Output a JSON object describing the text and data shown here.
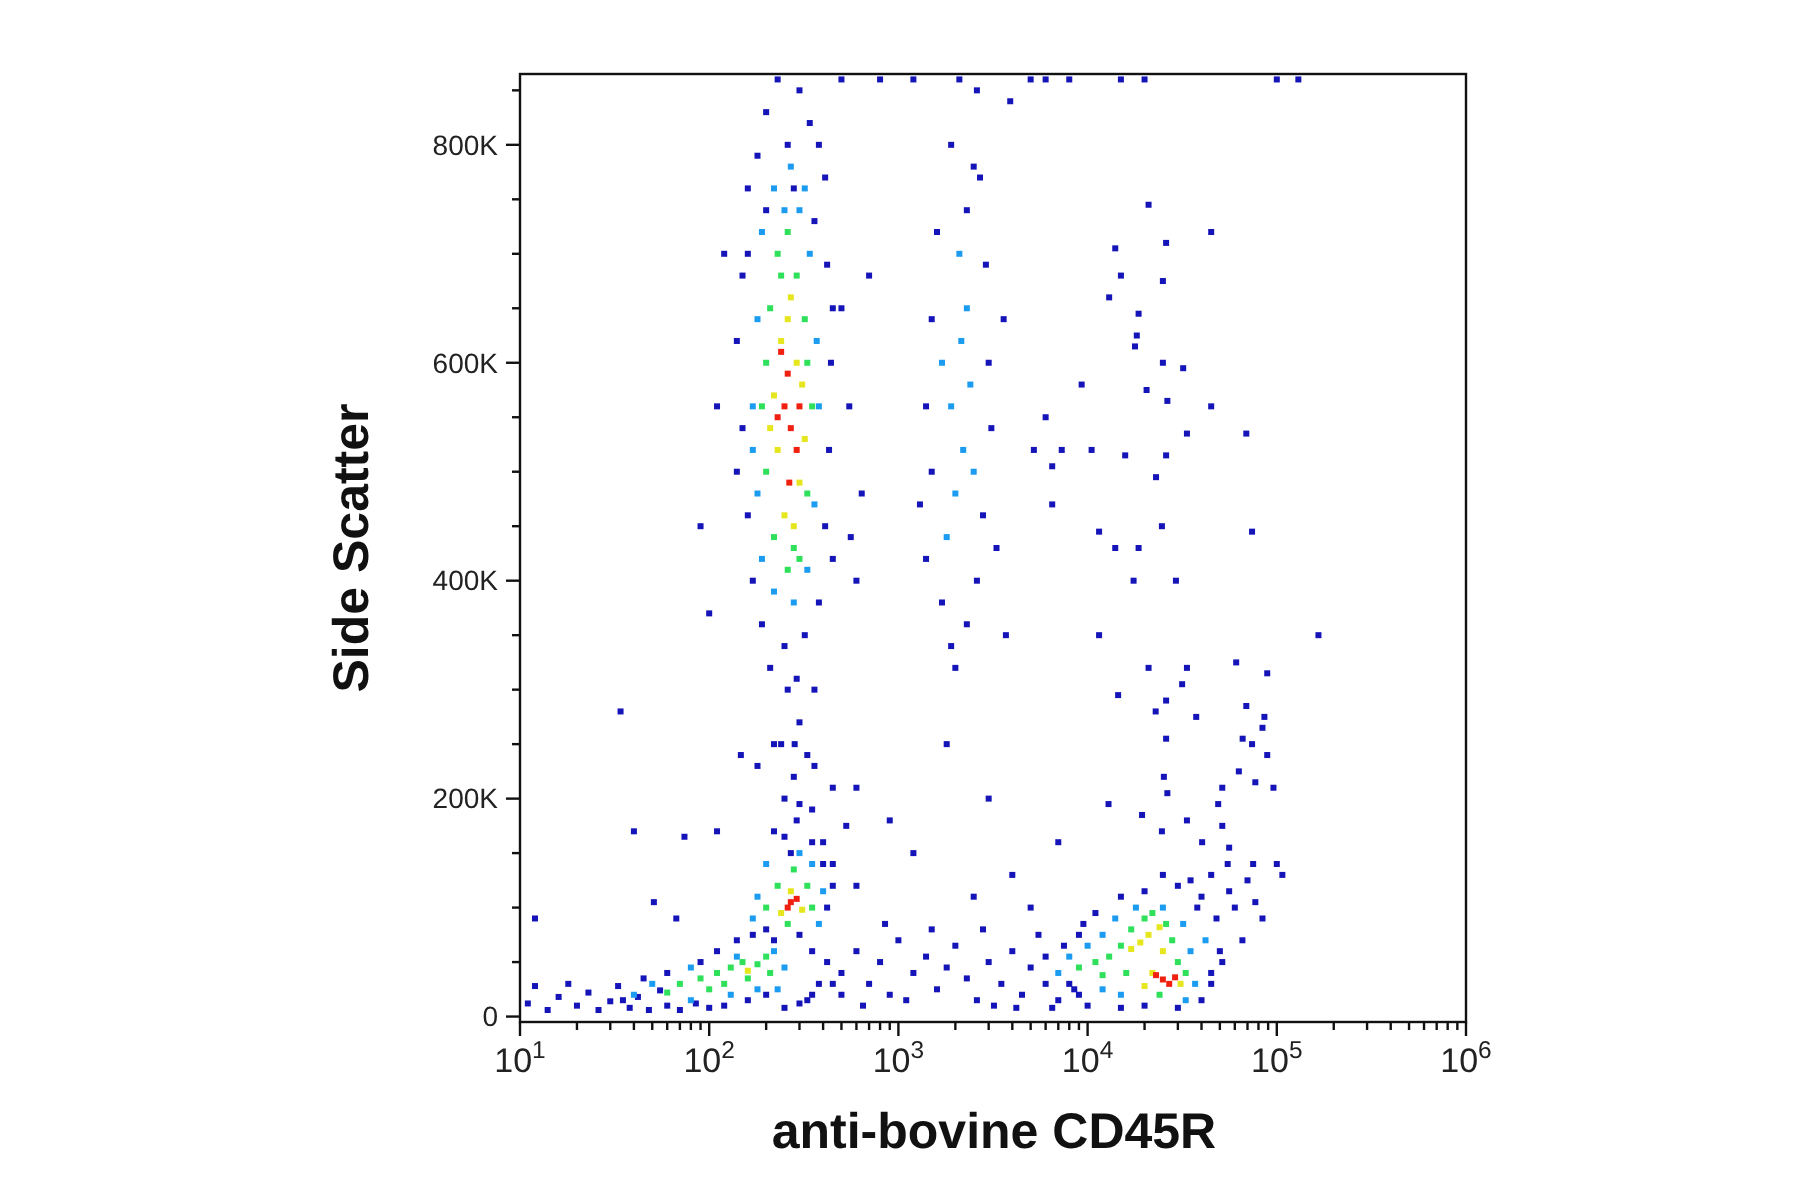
{
  "chart_data": {
    "type": "scatter",
    "xlabel": "anti-bovine CD45R",
    "ylabel": "Side Scatter",
    "log": "x",
    "marker": "square",
    "xlim": [
      10,
      1000000
    ],
    "ylim": [
      -5000,
      865000
    ],
    "xticks": [
      {
        "value": 10,
        "label": "10$^{1}$"
      },
      {
        "value": 20,
        "label": null
      },
      {
        "value": 30,
        "label": null
      },
      {
        "value": 40,
        "label": null
      },
      {
        "value": 50,
        "label": null
      },
      {
        "value": 60,
        "label": null
      },
      {
        "value": 70,
        "label": null
      },
      {
        "value": 80,
        "label": null
      },
      {
        "value": 90,
        "label": null
      },
      {
        "value": 100,
        "label": "10$^{2}$"
      },
      {
        "value": 200,
        "label": null
      },
      {
        "value": 300,
        "label": null
      },
      {
        "value": 400,
        "label": null
      },
      {
        "value": 500,
        "label": null
      },
      {
        "value": 600,
        "label": null
      },
      {
        "value": 700,
        "label": null
      },
      {
        "value": 800,
        "label": null
      },
      {
        "value": 900,
        "label": null
      },
      {
        "value": 1000,
        "label": "10$^{3}$"
      },
      {
        "value": 2000,
        "label": null
      },
      {
        "value": 3000,
        "label": null
      },
      {
        "value": 4000,
        "label": null
      },
      {
        "value": 5000,
        "label": null
      },
      {
        "value": 6000,
        "label": null
      },
      {
        "value": 7000,
        "label": null
      },
      {
        "value": 8000,
        "label": null
      },
      {
        "value": 9000,
        "label": null
      },
      {
        "value": 10000,
        "label": "10$^{4}$"
      },
      {
        "value": 20000,
        "label": null
      },
      {
        "value": 30000,
        "label": null
      },
      {
        "value": 40000,
        "label": null
      },
      {
        "value": 50000,
        "label": null
      },
      {
        "value": 60000,
        "label": null
      },
      {
        "value": 70000,
        "label": null
      },
      {
        "value": 80000,
        "label": null
      },
      {
        "value": 90000,
        "label": null
      },
      {
        "value": 100000,
        "label": "10$^{5}$"
      },
      {
        "value": 200000,
        "label": null
      },
      {
        "value": 300000,
        "label": null
      },
      {
        "value": 400000,
        "label": null
      },
      {
        "value": 500000,
        "label": null
      },
      {
        "value": 600000,
        "label": null
      },
      {
        "value": 700000,
        "label": null
      },
      {
        "value": 800000,
        "label": null
      },
      {
        "value": 900000,
        "label": null
      },
      {
        "value": 1000000,
        "label": "10$^{6}$"
      }
    ],
    "yticks": [
      0,
      {
        "value": 50000,
        "label": null
      },
      {
        "value": 100000,
        "label": null
      },
      {
        "value": 150000,
        "label": null
      },
      {
        "value": 200000,
        "label": "200K"
      },
      {
        "value": 250000,
        "label": null
      },
      {
        "value": 300000,
        "label": null
      },
      {
        "value": 350000,
        "label": null
      },
      {
        "value": 400000,
        "label": "400K"
      },
      {
        "value": 450000,
        "label": null
      },
      {
        "value": 500000,
        "label": null
      },
      {
        "value": 550000,
        "label": null
      },
      {
        "value": 600000,
        "label": "600K"
      },
      {
        "value": 650000,
        "label": null
      },
      {
        "value": 700000,
        "label": null
      },
      {
        "value": 750000,
        "label": null
      },
      {
        "value": 800000,
        "label": "800K"
      },
      {
        "value": 850000,
        "label": null
      }
    ],
    "series": [
      {
        "color": "#1414b8",
        "x": [
          230,
          300,
          200,
          340,
          260,
          180,
          380,
          280,
          160,
          410,
          200,
          360,
          150,
          420,
          140,
          440,
          150,
          430,
          160,
          410,
          170,
          380,
          190,
          320,
          250,
          210,
          290,
          360,
          160,
          450,
          140,
          450,
          110,
          90,
          560,
          640,
          500,
          120,
          700,
          550,
          100,
          600,
          260,
          300,
          240,
          330,
          280,
          250,
          350,
          290,
          220,
          400,
          270,
          180,
          450,
          2100,
          2600,
          1900,
          2700,
          2300,
          1600,
          2900,
          1500,
          3000,
          1400,
          3100,
          1500,
          2800,
          1400,
          2600,
          1700,
          2300,
          1900,
          2000,
          3300,
          1300,
          2500,
          3600,
          500,
          800,
          1200,
          5000,
          6000,
          8000,
          15000,
          20000,
          100000,
          130000,
          3900,
          21000,
          45000,
          14000,
          26000,
          15000,
          25000,
          13000,
          18600,
          18200,
          17800,
          25000,
          32000,
          9300,
          20500,
          26400,
          45000,
          6000,
          33500,
          69000,
          5200,
          7300,
          10500,
          15800,
          26000,
          6500,
          23000,
          6500,
          11500,
          74000,
          14000,
          18600,
          24700,
          17500,
          29300,
          3700,
          11500,
          166000,
          21000,
          33500,
          61000,
          89000,
          14500,
          26000,
          31600,
          37500,
          22900,
          69000,
          74000,
          66000,
          84000,
          86000,
          89000,
          26000,
          63000,
          77000,
          96000,
          51500,
          26400,
          25300,
          49000,
          51500,
          56000,
          100000,
          107000,
          33500,
          24700,
          19400,
          12900,
          40300,
          56000,
          77000,
          84000,
          65800,
          51500,
          45000,
          500,
          600,
          700,
          800,
          900,
          1000,
          1200,
          1400,
          1600,
          1800,
          2000,
          2300,
          2600,
          3000,
          3500,
          4000,
          4500,
          5000,
          5500,
          6000,
          7000,
          7500,
          8500,
          9500,
          1100,
          1500,
          2800,
          4200,
          650,
          850,
          3200,
          6500,
          600,
          1200,
          2500,
          4000,
          900,
          3000,
          5000,
          1800,
          7000,
          450,
          11,
          12,
          14,
          16,
          18,
          20,
          23,
          26,
          30,
          33,
          38,
          42,
          48,
          55,
          60,
          70,
          85,
          100,
          120,
          250,
          300,
          350,
          12,
          34,
          40,
          74,
          51,
          67,
          110,
          147,
          220,
          283,
          360,
          600,
          530,
          110,
          140,
          170,
          200,
          220,
          300,
          350,
          420,
          450,
          500,
          380,
          330,
          160,
          200,
          90,
          60,
          45,
          35,
          400,
          420,
          450,
          350,
          250,
          300,
          8000,
          9000,
          10000,
          15000,
          20000,
          30000,
          40000,
          45000,
          50000,
          48000,
          40000,
          35000,
          30000,
          25000,
          20000,
          15000,
          11000,
          9000,
          6000,
          45000,
          55000,
          60000,
          70000,
          75000,
          38000
        ],
        "values": [
          860000,
          850000,
          830000,
          820000,
          800000,
          790000,
          800000,
          760000,
          760000,
          770000,
          740000,
          730000,
          680000,
          690000,
          620000,
          600000,
          540000,
          520000,
          460000,
          450000,
          400000,
          380000,
          360000,
          350000,
          340000,
          320000,
          310000,
          300000,
          700000,
          650000,
          500000,
          420000,
          560000,
          450000,
          440000,
          480000,
          650000,
          700000,
          680000,
          560000,
          370000,
          400000,
          300000,
          270000,
          250000,
          240000,
          220000,
          200000,
          190000,
          180000,
          170000,
          160000,
          150000,
          230000,
          210000,
          860000,
          850000,
          800000,
          770000,
          740000,
          720000,
          690000,
          640000,
          600000,
          560000,
          540000,
          500000,
          460000,
          420000,
          400000,
          380000,
          360000,
          340000,
          320000,
          430000,
          470000,
          780000,
          640000,
          860000,
          860000,
          860000,
          860000,
          860000,
          860000,
          860000,
          860000,
          860000,
          860000,
          840000,
          745000,
          720000,
          705000,
          710000,
          680000,
          675000,
          660000,
          645000,
          625000,
          615000,
          600000,
          595000,
          580000,
          575000,
          565000,
          560000,
          550000,
          535000,
          535000,
          520000,
          520000,
          520000,
          515000,
          515000,
          505000,
          495000,
          470000,
          445000,
          445000,
          430000,
          430000,
          450000,
          400000,
          400000,
          350000,
          350000,
          350000,
          320000,
          320000,
          325000,
          315000,
          295000,
          290000,
          305000,
          275000,
          280000,
          285000,
          250000,
          255000,
          265000,
          275000,
          240000,
          255000,
          225000,
          215000,
          210000,
          210000,
          205000,
          220000,
          195000,
          175000,
          155000,
          140000,
          130000,
          180000,
          170000,
          185000,
          195000,
          160000,
          115000,
          105000,
          90000,
          70000,
          50000,
          30000,
          40000,
          60000,
          30000,
          50000,
          20000,
          70000,
          40000,
          55000,
          25000,
          45000,
          65000,
          35000,
          15000,
          50000,
          30000,
          60000,
          20000,
          45000,
          75000,
          30000,
          15000,
          65000,
          25000,
          85000,
          15000,
          80000,
          80000,
          8000,
          10000,
          85000,
          10000,
          8000,
          120000,
          150000,
          110000,
          130000,
          180000,
          200000,
          100000,
          250000,
          160000,
          140000,
          12000,
          28000,
          6000,
          18000,
          30000,
          10000,
          22000,
          6000,
          14000,
          28000,
          8000,
          18000,
          6000,
          24000,
          10000,
          6000,
          12000,
          8000,
          10000,
          8000,
          12000,
          20000,
          90000,
          280000,
          170000,
          165000,
          105000,
          90000,
          170000,
          240000,
          250000,
          250000,
          230000,
          210000,
          175000,
          60000,
          70000,
          75000,
          80000,
          70000,
          75000,
          60000,
          50000,
          30000,
          20000,
          30000,
          15000,
          15000,
          20000,
          50000,
          40000,
          35000,
          15000,
          140000,
          100000,
          120000,
          160000,
          165000,
          195000,
          30000,
          20000,
          10000,
          8000,
          10000,
          8000,
          15000,
          40000,
          60000,
          90000,
          110000,
          125000,
          120000,
          130000,
          115000,
          110000,
          95000,
          75000,
          55000,
          130000,
          140000,
          100000,
          125000,
          140000,
          100000
        ]
      },
      {
        "color": "#1c9cf0",
        "x": [
          220,
          270,
          300,
          190,
          340,
          180,
          370,
          170,
          380,
          180,
          360,
          190,
          330,
          220,
          280,
          250,
          320,
          170,
          2150,
          2400,
          1900,
          2200,
          2000,
          2500,
          1800,
          2300,
          2100,
          1700,
          200,
          350,
          300,
          180,
          400,
          170,
          380,
          40,
          50,
          80,
          140,
          220,
          250,
          230,
          80,
          130,
          180,
          7000,
          8000,
          10000,
          12000,
          14000,
          18000,
          25000,
          32000,
          35000,
          37000,
          12000,
          15000,
          33000,
          42000
        ],
        "values": [
          760000,
          780000,
          740000,
          720000,
          700000,
          640000,
          620000,
          560000,
          560000,
          480000,
          470000,
          420000,
          410000,
          390000,
          380000,
          740000,
          760000,
          520000,
          620000,
          580000,
          560000,
          520000,
          480000,
          500000,
          440000,
          650000,
          700000,
          600000,
          140000,
          140000,
          150000,
          110000,
          115000,
          90000,
          85000,
          20000,
          30000,
          45000,
          55000,
          60000,
          45000,
          25000,
          15000,
          20000,
          25000,
          40000,
          55000,
          65000,
          75000,
          90000,
          100000,
          100000,
          85000,
          60000,
          30000,
          25000,
          20000,
          15000,
          70000
        ]
      },
      {
        "color": "#2ee05a",
        "x": [
          230,
          260,
          290,
          210,
          320,
          200,
          330,
          200,
          330,
          220,
          300,
          260,
          240,
          350,
          190,
          280,
          230,
          330,
          200,
          350,
          280,
          260,
          70,
          90,
          110,
          130,
          150,
          180,
          200,
          120,
          100,
          160,
          60,
          210,
          9000,
          11000,
          13000,
          15000,
          17000,
          20000,
          26000,
          28000,
          30000,
          16000,
          12000,
          33000,
          24000,
          22000
        ],
        "values": [
          700000,
          720000,
          680000,
          650000,
          640000,
          600000,
          600000,
          500000,
          480000,
          440000,
          420000,
          410000,
          680000,
          560000,
          560000,
          430000,
          120000,
          120000,
          100000,
          100000,
          135000,
          85000,
          30000,
          35000,
          40000,
          45000,
          50000,
          48000,
          55000,
          30000,
          25000,
          35000,
          22000,
          40000,
          45000,
          50000,
          55000,
          65000,
          80000,
          90000,
          85000,
          70000,
          50000,
          40000,
          38000,
          40000,
          20000,
          95000
        ]
      },
      {
        "color": "#e6e61e",
        "x": [
          260,
          240,
          290,
          220,
          310,
          230,
          300,
          250,
          280,
          270,
          320,
          210,
          270,
          310,
          240,
          21000,
          19000,
          24000,
          22000,
          31000,
          20000,
          25000,
          17000,
          160
        ],
        "values": [
          640000,
          620000,
          600000,
          570000,
          580000,
          520000,
          490000,
          460000,
          450000,
          660000,
          530000,
          540000,
          115000,
          98000,
          95000,
          75000,
          68000,
          82000,
          40000,
          30000,
          28000,
          60000,
          62000,
          42000
        ]
      },
      {
        "color": "#f02010",
        "x": [
          270,
          250,
          290,
          260,
          240,
          300,
          265,
          230,
          270,
          260,
          290,
          25000,
          27000,
          23000,
          29000
        ],
        "values": [
          540000,
          560000,
          520000,
          590000,
          610000,
          560000,
          490000,
          550000,
          105000,
          100000,
          108000,
          34000,
          30000,
          38000,
          36000
        ]
      }
    ]
  }
}
